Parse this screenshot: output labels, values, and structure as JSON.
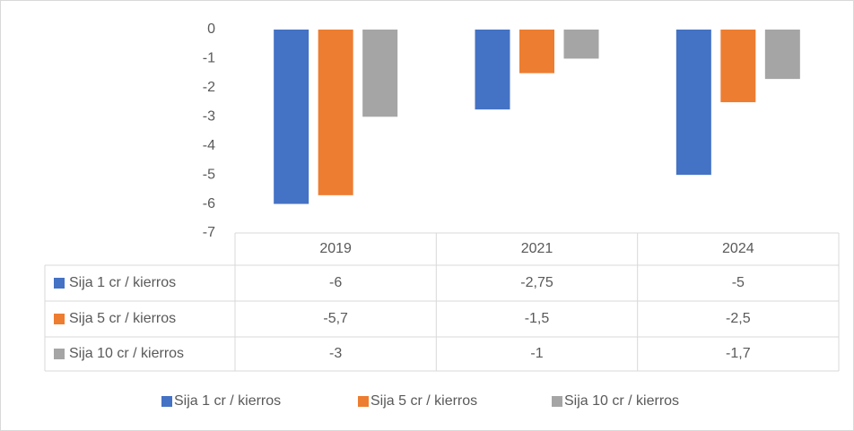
{
  "chart_data": {
    "type": "bar",
    "categories": [
      "2019",
      "2021",
      "2024"
    ],
    "series": [
      {
        "name": "Sija 1 cr / kierros",
        "color": "#4472c4",
        "values": [
          -6,
          -2.75,
          -5
        ],
        "value_labels": [
          "-6",
          "-2,75",
          "-5"
        ]
      },
      {
        "name": "Sija 5 cr / kierros",
        "color": "#ed7d31",
        "values": [
          -5.7,
          -1.5,
          -2.5
        ],
        "value_labels": [
          "-5,7",
          "-1,5",
          "-2,5"
        ]
      },
      {
        "name": "Sija 10 cr / kierros",
        "color": "#a5a5a5",
        "values": [
          -3,
          -1,
          -1.7
        ],
        "value_labels": [
          "-3",
          "-1",
          "-1,7"
        ]
      }
    ],
    "ylim": [
      -7,
      0
    ],
    "yticks": [
      0,
      -1,
      -2,
      -3,
      -4,
      -5,
      -6,
      -7
    ],
    "grid": false,
    "legend": "bottom"
  }
}
